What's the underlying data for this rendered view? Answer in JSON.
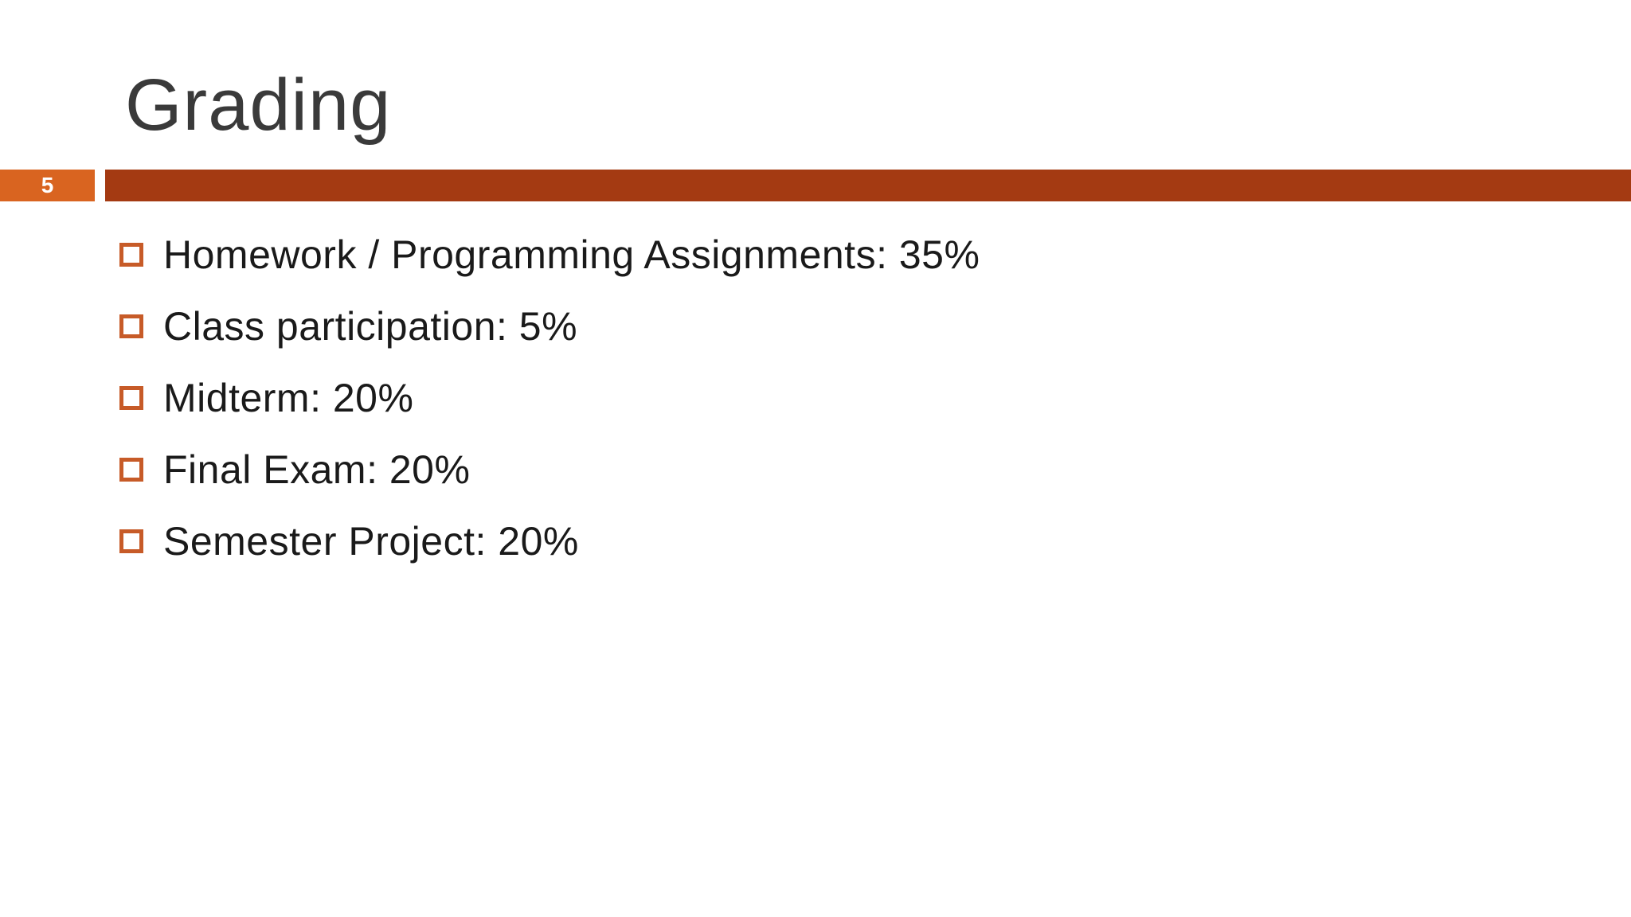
{
  "slide": {
    "title": "Grading",
    "page_number": "5",
    "bullets": [
      "Homework / Programming Assignments: 35%",
      "Class participation: 5%",
      "Midterm: 20%",
      "Final Exam: 20%",
      "Semester Project: 20%"
    ],
    "colors": {
      "page_box": "#D96420",
      "accent_bar": "#A43A12",
      "bullet_outline": "#C75B28",
      "title_text": "#3A3A3A",
      "body_text": "#1A1A1A"
    }
  }
}
